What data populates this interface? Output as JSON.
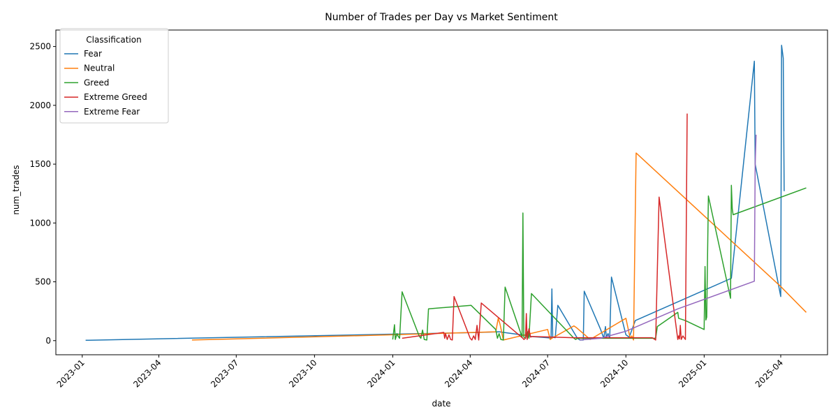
{
  "chart_data": {
    "type": "line",
    "title": "Number of Trades per Day vs Market Sentiment",
    "xlabel": "date",
    "ylabel": "num_trades",
    "xlim": [
      "2022-12-01",
      "2025-05-26"
    ],
    "ylim": [
      -120,
      2640
    ],
    "x_ticks": [
      "2023-01",
      "2023-04",
      "2023-07",
      "2023-10",
      "2024-01",
      "2024-04",
      "2024-07",
      "2024-10",
      "2025-01",
      "2025-04"
    ],
    "y_ticks": [
      0,
      500,
      1000,
      1500,
      2000,
      2500
    ],
    "grid": false,
    "legend_title": "Classification",
    "legend_position": "top-left",
    "series": [
      {
        "name": "Fear",
        "color": "#1f77b4",
        "points": [
          [
            "2023-01-05",
            3
          ],
          [
            "2024-01-01",
            55
          ],
          [
            "2024-04-05",
            68
          ],
          [
            "2024-05-05",
            75
          ],
          [
            "2024-06-05",
            45
          ],
          [
            "2024-06-12",
            35
          ],
          [
            "2024-07-01",
            25
          ],
          [
            "2024-07-05",
            20
          ],
          [
            "2024-07-06",
            440
          ],
          [
            "2024-07-07",
            30
          ],
          [
            "2024-07-10",
            25
          ],
          [
            "2024-07-13",
            300
          ],
          [
            "2024-08-05",
            20
          ],
          [
            "2024-08-08",
            5
          ],
          [
            "2024-08-12",
            5
          ],
          [
            "2024-08-13",
            420
          ],
          [
            "2024-09-01",
            100
          ],
          [
            "2024-09-05",
            20
          ],
          [
            "2024-09-07",
            120
          ],
          [
            "2024-09-08",
            30
          ],
          [
            "2024-09-10",
            60
          ],
          [
            "2024-09-12",
            20
          ],
          [
            "2024-09-14",
            540
          ],
          [
            "2024-10-01",
            50
          ],
          [
            "2024-10-05",
            30
          ],
          [
            "2024-10-12",
            170
          ],
          [
            "2025-02-02",
            530
          ],
          [
            "2025-03-01",
            2375
          ],
          [
            "2025-03-02",
            1500
          ],
          [
            "2025-04-01",
            375
          ],
          [
            "2025-04-02",
            2510
          ],
          [
            "2025-04-04",
            2400
          ],
          [
            "2025-04-05",
            1270
          ]
        ]
      },
      {
        "name": "Neutral",
        "color": "#ff7f0e",
        "points": [
          [
            "2023-05-10",
            5
          ],
          [
            "2024-01-01",
            50
          ],
          [
            "2024-05-01",
            75
          ],
          [
            "2024-05-04",
            190
          ],
          [
            "2024-05-06",
            140
          ],
          [
            "2024-05-10",
            5
          ],
          [
            "2024-07-01",
            95
          ],
          [
            "2024-07-04",
            10
          ],
          [
            "2024-07-06",
            20
          ],
          [
            "2024-08-01",
            125
          ],
          [
            "2024-08-04",
            110
          ],
          [
            "2024-08-20",
            10
          ],
          [
            "2024-10-01",
            190
          ],
          [
            "2024-10-06",
            20
          ],
          [
            "2024-10-08",
            40
          ],
          [
            "2024-10-10",
            5
          ],
          [
            "2024-10-13",
            1595
          ],
          [
            "2025-04-01",
            460
          ],
          [
            "2025-05-01",
            240
          ]
        ]
      },
      {
        "name": "Greed",
        "color": "#2ca02c",
        "points": [
          [
            "2024-01-01",
            10
          ],
          [
            "2024-01-03",
            135
          ],
          [
            "2024-01-04",
            10
          ],
          [
            "2024-01-06",
            60
          ],
          [
            "2024-01-07",
            40
          ],
          [
            "2024-01-09",
            20
          ],
          [
            "2024-01-12",
            415
          ],
          [
            "2024-02-01",
            40
          ],
          [
            "2024-02-03",
            20
          ],
          [
            "2024-02-05",
            90
          ],
          [
            "2024-02-07",
            10
          ],
          [
            "2024-02-10",
            5
          ],
          [
            "2024-02-12",
            270
          ],
          [
            "2024-04-02",
            300
          ],
          [
            "2024-05-01",
            95
          ],
          [
            "2024-05-03",
            20
          ],
          [
            "2024-05-05",
            60
          ],
          [
            "2024-05-07",
            10
          ],
          [
            "2024-05-10",
            5
          ],
          [
            "2024-05-12",
            455
          ],
          [
            "2024-06-01",
            30
          ],
          [
            "2024-06-02",
            1085
          ],
          [
            "2024-06-03",
            30
          ],
          [
            "2024-06-05",
            20
          ],
          [
            "2024-06-07",
            80
          ],
          [
            "2024-06-09",
            20
          ],
          [
            "2024-06-12",
            400
          ],
          [
            "2024-08-01",
            20
          ],
          [
            "2024-08-03",
            10
          ],
          [
            "2024-08-05",
            20
          ],
          [
            "2024-11-05",
            20
          ],
          [
            "2024-11-07",
            120
          ],
          [
            "2024-12-01",
            240
          ],
          [
            "2024-12-02",
            190
          ],
          [
            "2024-12-10",
            170
          ],
          [
            "2025-01-01",
            95
          ],
          [
            "2025-01-02",
            630
          ],
          [
            "2025-01-03",
            175
          ],
          [
            "2025-01-04",
            200
          ],
          [
            "2025-01-06",
            1230
          ],
          [
            "2025-02-01",
            360
          ],
          [
            "2025-02-02",
            1320
          ],
          [
            "2025-02-03",
            1120
          ],
          [
            "2025-02-04",
            1070
          ],
          [
            "2025-05-01",
            1298
          ]
        ]
      },
      {
        "name": "Extreme Greed",
        "color": "#d62728",
        "points": [
          [
            "2024-01-12",
            20
          ],
          [
            "2024-03-01",
            70
          ],
          [
            "2024-03-02",
            20
          ],
          [
            "2024-03-03",
            60
          ],
          [
            "2024-03-05",
            10
          ],
          [
            "2024-03-07",
            50
          ],
          [
            "2024-03-09",
            10
          ],
          [
            "2024-03-11",
            5
          ],
          [
            "2024-03-13",
            375
          ],
          [
            "2024-04-01",
            20
          ],
          [
            "2024-04-03",
            5
          ],
          [
            "2024-04-05",
            40
          ],
          [
            "2024-04-07",
            10
          ],
          [
            "2024-04-09",
            130
          ],
          [
            "2024-04-11",
            5
          ],
          [
            "2024-04-14",
            320
          ],
          [
            "2024-06-02",
            20
          ],
          [
            "2024-06-03",
            10
          ],
          [
            "2024-06-05",
            20
          ],
          [
            "2024-06-06",
            230
          ],
          [
            "2024-06-07",
            10
          ],
          [
            "2024-06-09",
            100
          ],
          [
            "2024-06-11",
            30
          ],
          [
            "2024-06-13",
            35
          ],
          [
            "2024-08-01",
            25
          ],
          [
            "2024-11-01",
            25
          ],
          [
            "2024-11-05",
            5
          ],
          [
            "2024-11-09",
            1220
          ],
          [
            "2024-12-01",
            10
          ],
          [
            "2024-12-02",
            40
          ],
          [
            "2024-12-03",
            15
          ],
          [
            "2024-12-04",
            130
          ],
          [
            "2024-12-05",
            10
          ],
          [
            "2024-12-07",
            40
          ],
          [
            "2024-12-09",
            20
          ],
          [
            "2024-12-10",
            10
          ],
          [
            "2024-12-12",
            1930
          ]
        ]
      },
      {
        "name": "Extreme Fear",
        "color": "#9467bd",
        "points": [
          [
            "2024-08-08",
            5
          ],
          [
            "2024-09-01",
            20
          ],
          [
            "2024-10-01",
            80
          ],
          [
            "2024-12-01",
            270
          ],
          [
            "2025-03-01",
            505
          ],
          [
            "2025-03-02",
            1500
          ],
          [
            "2025-03-03",
            1750
          ]
        ]
      }
    ]
  }
}
